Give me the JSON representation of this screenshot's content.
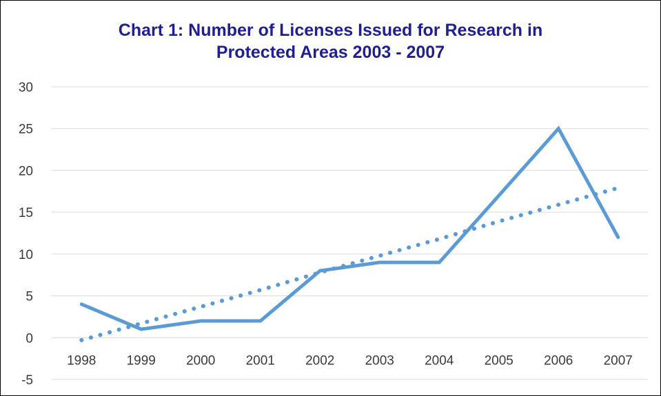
{
  "chart_data": {
    "type": "line",
    "title_lines": [
      "Chart 1: Number of Licenses Issued for Research in",
      "Protected Areas 2003 - 2007"
    ],
    "categories": [
      "1998",
      "1999",
      "2000",
      "2001",
      "2002",
      "2003",
      "2004",
      "2005",
      "2006",
      "2007"
    ],
    "series": [
      {
        "values": [
          4,
          1,
          2,
          2,
          8,
          9,
          9,
          17,
          25,
          12
        ],
        "style": "solid",
        "color": "#5b9bd5"
      },
      {
        "values": [
          -0.3,
          1.7,
          3.7,
          5.7,
          7.8,
          9.8,
          11.8,
          13.9,
          15.9,
          17.9
        ],
        "style": "dotted",
        "color": "#5b9bd5"
      }
    ],
    "ylim": [
      -5,
      30
    ],
    "yticks": [
      -5,
      0,
      5,
      10,
      15,
      20,
      25,
      30
    ],
    "grid": true,
    "legend": "none"
  }
}
